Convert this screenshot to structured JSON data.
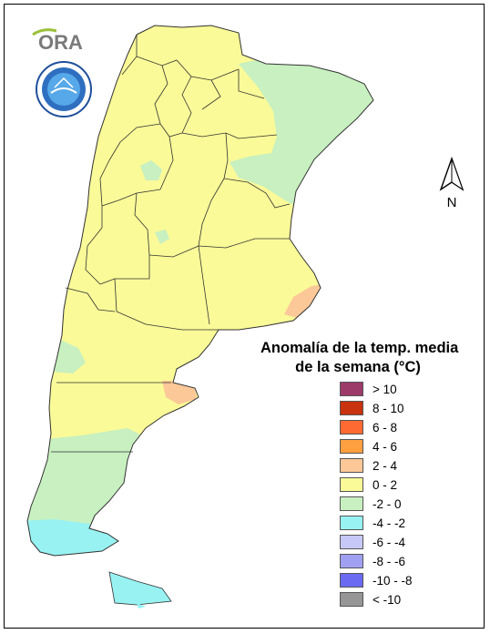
{
  "logos": {
    "ora_text": "ORA",
    "seal_icon": "smn-seal-icon"
  },
  "north_arrow": {
    "label": "N",
    "icon": "north-arrow-icon"
  },
  "legend": {
    "title_line1": "Anomalía de la temp. media",
    "title_line2": "de la semana (°C)",
    "items": [
      {
        "label": "> 10",
        "color": "#9c3a6a"
      },
      {
        "label": "8 - 10",
        "color": "#c8320f"
      },
      {
        "label": "6 - 8",
        "color": "#ff6a32"
      },
      {
        "label": "4 - 6",
        "color": "#ffa040"
      },
      {
        "label": "2 - 4",
        "color": "#fcc898"
      },
      {
        "label": "0 - 2",
        "color": "#fafa98"
      },
      {
        "label": "-2 - 0",
        "color": "#c8f0c0"
      },
      {
        "label": "-4 - -2",
        "color": "#98f2f2"
      },
      {
        "label": "-6 - -4",
        "color": "#c8c8f8"
      },
      {
        "label": "-8 - -6",
        "color": "#a0a0f2"
      },
      {
        "label": "-10 - -8",
        "color": "#6a6af2"
      },
      {
        "label": "< -10",
        "color": "#969696"
      }
    ]
  },
  "map": {
    "base_class": "0 - 2",
    "zones": [
      {
        "class": "-2 - 0",
        "area": "northeast-misiones-corrientes"
      },
      {
        "class": "-2 - 0",
        "area": "north-formosa"
      },
      {
        "class": "-2 - 0",
        "area": "southern-patagonia"
      },
      {
        "class": "-4 - -2",
        "area": "santa-cruz-south"
      },
      {
        "class": "-4 - -2",
        "area": "tierra-del-fuego"
      },
      {
        "class": "2 - 4",
        "area": "buenos-aires-coast"
      },
      {
        "class": "2 - 4",
        "area": "valdes-peninsula"
      }
    ]
  }
}
